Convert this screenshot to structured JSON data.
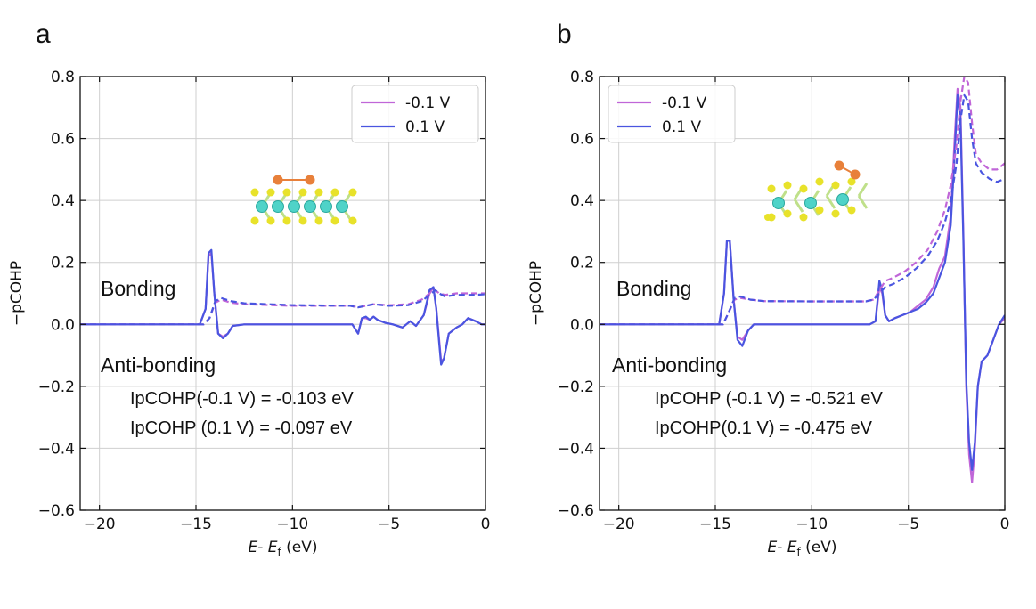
{
  "panel_labels": [
    "a",
    "b"
  ],
  "colors": {
    "neg": "#c066d8",
    "pos": "#4a55e0",
    "grid": "#cfcfcf",
    "axis": "#111111"
  },
  "chart_data": [
    {
      "type": "line",
      "panel": "a",
      "xlabel_italic": "E",
      "xlabel_sep": "- ",
      "xlabel_italic2": "E",
      "xlabel_sub": "f",
      "xlabel_unit": " (eV)",
      "ylabel": "−pCOHP",
      "xlim": [
        -21,
        0
      ],
      "ylim": [
        -0.6,
        0.8
      ],
      "xticks": [
        -20,
        -15,
        -10,
        -5,
        0
      ],
      "xtick_labels": [
        "−20",
        "−15",
        "−10",
        "−5",
        "0"
      ],
      "yticks": [
        -0.6,
        -0.4,
        -0.2,
        0.0,
        0.2,
        0.4,
        0.6,
        0.8
      ],
      "ytick_labels": [
        "−0.6",
        "−0.4",
        "−0.2",
        "0.0",
        "0.2",
        "0.4",
        "0.6",
        "0.8"
      ],
      "legend": [
        "-0.1 V",
        "0.1 V"
      ],
      "annotations": {
        "bonding": "Bonding",
        "antibonding": "Anti-bonding",
        "ip1": "IpCOHP(-0.1 V) = -0.103 eV",
        "ip2": "IpCOHP (0.1 V) = -0.097 eV"
      },
      "series": [
        {
          "name": "-0.1 V",
          "style": "solid",
          "color": "neg",
          "x": [
            -21,
            -14.8,
            -14.5,
            -14.35,
            -14.2,
            -14.05,
            -13.85,
            -13.6,
            -13.35,
            -13.1,
            -12.5,
            -11,
            -8,
            -6.9,
            -6.6,
            -6.4,
            -6.2,
            -6.0,
            -5.8,
            -5.6,
            -5.2,
            -4.8,
            -4.3,
            -3.9,
            -3.6,
            -3.2,
            -2.9,
            -2.7,
            -2.55,
            -2.4,
            -2.3,
            -2.15,
            -1.9,
            -1.5,
            -1.2,
            -0.9,
            -0.5,
            -0.2,
            0
          ],
          "y": [
            0,
            0,
            0.05,
            0.22,
            0.23,
            0.1,
            -0.03,
            -0.04,
            -0.03,
            -0.005,
            0,
            0,
            0,
            0,
            -0.03,
            0.02,
            0.02,
            0.015,
            0.025,
            0.015,
            0.005,
            0,
            -0.01,
            0.01,
            -0.005,
            0.03,
            0.1,
            0.12,
            0.05,
            -0.05,
            -0.12,
            -0.11,
            -0.03,
            -0.01,
            0.0,
            0.02,
            0.01,
            0.0,
            0.0
          ]
        },
        {
          "name": "0.1 V",
          "style": "solid",
          "color": "pos",
          "x": [
            -21,
            -14.8,
            -14.5,
            -14.35,
            -14.2,
            -14.05,
            -13.85,
            -13.6,
            -13.35,
            -13.1,
            -12.5,
            -11,
            -8,
            -6.9,
            -6.6,
            -6.4,
            -6.2,
            -6.0,
            -5.8,
            -5.6,
            -5.2,
            -4.8,
            -4.3,
            -3.9,
            -3.6,
            -3.2,
            -2.9,
            -2.7,
            -2.55,
            -2.4,
            -2.3,
            -2.15,
            -1.9,
            -1.5,
            -1.2,
            -0.9,
            -0.5,
            -0.2,
            0
          ],
          "y": [
            0,
            0,
            0.05,
            0.23,
            0.24,
            0.1,
            -0.03,
            -0.045,
            -0.03,
            -0.005,
            0,
            0,
            0,
            0,
            -0.03,
            0.02,
            0.025,
            0.015,
            0.025,
            0.015,
            0.005,
            0,
            -0.01,
            0.01,
            -0.005,
            0.03,
            0.11,
            0.12,
            0.05,
            -0.06,
            -0.13,
            -0.11,
            -0.03,
            -0.01,
            0.0,
            0.02,
            0.01,
            0.0,
            0.0
          ]
        },
        {
          "name": "-0.1 V IpCOHP",
          "style": "dashed",
          "color": "neg",
          "x": [
            -21,
            -14.6,
            -14.3,
            -14.0,
            -13.7,
            -13.2,
            -12.5,
            -10,
            -7,
            -6.6,
            -6.2,
            -5.8,
            -5.0,
            -4.0,
            -3.3,
            -2.9,
            -2.6,
            -2.4,
            -2.1,
            -1.5,
            -1.0,
            -0.5,
            0
          ],
          "y": [
            0,
            0,
            0.02,
            0.07,
            0.08,
            0.07,
            0.065,
            0.06,
            0.06,
            0.055,
            0.06,
            0.065,
            0.062,
            0.065,
            0.08,
            0.1,
            0.11,
            0.1,
            0.095,
            0.1,
            0.1,
            0.1,
            0.1
          ]
        },
        {
          "name": "0.1 V IpCOHP",
          "style": "dashed",
          "color": "pos",
          "x": [
            -21,
            -14.6,
            -14.3,
            -14.0,
            -13.7,
            -13.2,
            -12.5,
            -10,
            -7,
            -6.6,
            -6.2,
            -5.8,
            -5.0,
            -4.0,
            -3.3,
            -2.9,
            -2.6,
            -2.4,
            -2.1,
            -1.5,
            -1.0,
            -0.5,
            0
          ],
          "y": [
            0,
            0,
            0.02,
            0.075,
            0.085,
            0.075,
            0.068,
            0.062,
            0.06,
            0.055,
            0.06,
            0.065,
            0.06,
            0.062,
            0.075,
            0.095,
            0.11,
            0.1,
            0.09,
            0.095,
            0.095,
            0.095,
            0.097
          ]
        }
      ]
    },
    {
      "type": "line",
      "panel": "b",
      "xlabel_italic": "E",
      "xlabel_sep": "- ",
      "xlabel_italic2": "E",
      "xlabel_sub": "f",
      "xlabel_unit": " (eV)",
      "ylabel": "−pCOHP",
      "xlim": [
        -21,
        0
      ],
      "ylim": [
        -0.6,
        0.8
      ],
      "xticks": [
        -20,
        -15,
        -10,
        -5,
        0
      ],
      "xtick_labels": [
        "−20",
        "−15",
        "−10",
        "−5",
        "0"
      ],
      "yticks": [
        -0.6,
        -0.4,
        -0.2,
        0.0,
        0.2,
        0.4,
        0.6,
        0.8
      ],
      "ytick_labels": [
        "−0.6",
        "−0.4",
        "−0.2",
        "0.0",
        "0.2",
        "0.4",
        "0.6",
        "0.8"
      ],
      "legend": [
        "-0.1 V",
        "0.1 V"
      ],
      "annotations": {
        "bonding": "Bonding",
        "antibonding": "Anti-bonding",
        "ip1": "IpCOHP (-0.1 V) = -0.521 eV",
        "ip2": "IpCOHP(0.1 V) = -0.475 eV"
      },
      "series": [
        {
          "name": "-0.1 V",
          "style": "solid",
          "color": "neg",
          "x": [
            -21,
            -14.8,
            -14.55,
            -14.4,
            -14.25,
            -14.05,
            -13.85,
            -13.6,
            -13.3,
            -13.0,
            -12.5,
            -10,
            -7,
            -6.7,
            -6.5,
            -6.35,
            -6.2,
            -6.0,
            -5.7,
            -5.3,
            -4.9,
            -4.5,
            -4.1,
            -3.7,
            -3.4,
            -3.1,
            -2.8,
            -2.6,
            -2.45,
            -2.3,
            -2.15,
            -2.0,
            -1.85,
            -1.7,
            -1.55,
            -1.4,
            -1.2,
            -0.9,
            -0.6,
            -0.3,
            0
          ],
          "y": [
            0,
            0,
            0.1,
            0.27,
            0.27,
            0.08,
            -0.04,
            -0.05,
            -0.02,
            0,
            0,
            0,
            0,
            0.01,
            0.12,
            0.1,
            0.03,
            0.01,
            0.02,
            0.03,
            0.04,
            0.06,
            0.08,
            0.12,
            0.18,
            0.22,
            0.35,
            0.6,
            0.76,
            0.7,
            0.3,
            -0.2,
            -0.42,
            -0.51,
            -0.4,
            -0.2,
            -0.12,
            -0.1,
            -0.05,
            0.0,
            0.02
          ]
        },
        {
          "name": "0.1 V",
          "style": "solid",
          "color": "pos",
          "x": [
            -21,
            -14.8,
            -14.55,
            -14.4,
            -14.25,
            -14.05,
            -13.85,
            -13.6,
            -13.3,
            -13.0,
            -12.5,
            -10,
            -7,
            -6.7,
            -6.5,
            -6.35,
            -6.2,
            -6.0,
            -5.7,
            -5.3,
            -4.9,
            -4.5,
            -4.1,
            -3.7,
            -3.4,
            -3.1,
            -2.8,
            -2.6,
            -2.45,
            -2.3,
            -2.15,
            -2.0,
            -1.85,
            -1.7,
            -1.55,
            -1.4,
            -1.2,
            -0.9,
            -0.6,
            -0.3,
            0
          ],
          "y": [
            0,
            0,
            0.1,
            0.27,
            0.27,
            0.08,
            -0.05,
            -0.07,
            -0.02,
            0,
            0,
            0,
            0,
            0.01,
            0.14,
            0.11,
            0.03,
            0.01,
            0.02,
            0.03,
            0.04,
            0.05,
            0.07,
            0.1,
            0.15,
            0.2,
            0.32,
            0.55,
            0.74,
            0.66,
            0.28,
            -0.18,
            -0.38,
            -0.47,
            -0.38,
            -0.2,
            -0.12,
            -0.1,
            -0.05,
            0.0,
            0.03
          ]
        },
        {
          "name": "-0.1 V IpCOHP",
          "style": "dashed",
          "color": "neg",
          "x": [
            -21,
            -14.6,
            -14.3,
            -14.0,
            -13.7,
            -13.2,
            -12.5,
            -10,
            -7.2,
            -6.8,
            -6.5,
            -6.2,
            -5.8,
            -5.2,
            -4.6,
            -4.0,
            -3.5,
            -3.1,
            -2.8,
            -2.5,
            -2.3,
            -2.1,
            -1.9,
            -1.7,
            -1.5,
            -1.2,
            -0.8,
            -0.4,
            0
          ],
          "y": [
            0,
            0,
            0.04,
            0.08,
            0.085,
            0.08,
            0.075,
            0.074,
            0.074,
            0.08,
            0.11,
            0.14,
            0.15,
            0.17,
            0.2,
            0.24,
            0.3,
            0.37,
            0.45,
            0.58,
            0.72,
            0.8,
            0.78,
            0.65,
            0.55,
            0.52,
            0.5,
            0.5,
            0.52
          ]
        },
        {
          "name": "0.1 V IpCOHP",
          "style": "dashed",
          "color": "pos",
          "x": [
            -21,
            -14.6,
            -14.3,
            -14.0,
            -13.7,
            -13.2,
            -12.5,
            -10,
            -7.2,
            -6.8,
            -6.5,
            -6.2,
            -5.8,
            -5.2,
            -4.6,
            -4.0,
            -3.5,
            -3.1,
            -2.8,
            -2.5,
            -2.3,
            -2.1,
            -1.9,
            -1.7,
            -1.5,
            -1.2,
            -0.8,
            -0.4,
            0
          ],
          "y": [
            0,
            0,
            0.04,
            0.085,
            0.09,
            0.08,
            0.075,
            0.074,
            0.074,
            0.08,
            0.1,
            0.12,
            0.13,
            0.15,
            0.18,
            0.22,
            0.27,
            0.33,
            0.4,
            0.52,
            0.66,
            0.74,
            0.72,
            0.6,
            0.52,
            0.49,
            0.47,
            0.46,
            0.47
          ]
        }
      ]
    }
  ]
}
